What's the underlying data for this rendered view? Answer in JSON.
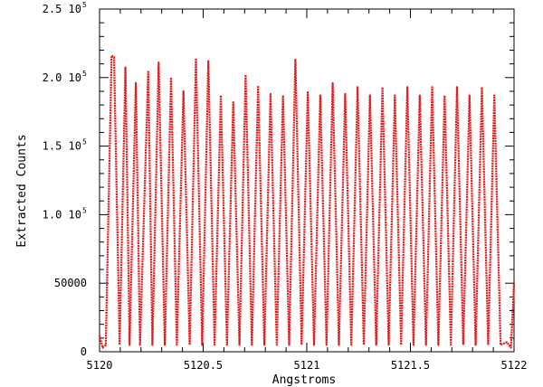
{
  "chart_data": {
    "type": "line",
    "xlabel": "Angstroms",
    "ylabel": "Extracted Counts",
    "xlim": [
      5120,
      5122
    ],
    "ylim": [
      0,
      250000
    ],
    "grid": false,
    "x_ticks": [
      {
        "value": 5120,
        "label": "5120"
      },
      {
        "value": 5120.5,
        "label": "5120.5"
      },
      {
        "value": 5121,
        "label": "5121"
      },
      {
        "value": 5121.5,
        "label": "5121.5"
      },
      {
        "value": 5122,
        "label": "5122"
      }
    ],
    "y_ticks": [
      {
        "value": 0,
        "label": "0",
        "exp": ""
      },
      {
        "value": 50000,
        "label": "50000",
        "exp": ""
      },
      {
        "value": 100000,
        "label": "1.0  10",
        "exp": "5"
      },
      {
        "value": 150000,
        "label": "1.5  10",
        "exp": "5"
      },
      {
        "value": 200000,
        "label": "2.0  10",
        "exp": "5"
      },
      {
        "value": 250000,
        "label": "2.5  10",
        "exp": "5"
      }
    ],
    "series_color": "#e31a1c",
    "series": [
      {
        "x": [
          5120.0,
          5120.015,
          5120.03,
          5120.058,
          5120.07,
          5120.097,
          5120.125,
          5120.145,
          5120.175,
          5120.195,
          5120.235,
          5120.255,
          5120.285,
          5120.315,
          5120.345,
          5120.373,
          5120.405,
          5120.435,
          5120.465,
          5120.495,
          5120.525,
          5120.555,
          5120.585,
          5120.615,
          5120.645,
          5120.675,
          5120.705,
          5120.735,
          5120.765,
          5120.795,
          5120.825,
          5120.855,
          5120.885,
          5120.915,
          5120.945,
          5120.975,
          5121.005,
          5121.035,
          5121.065,
          5121.095,
          5121.125,
          5121.155,
          5121.185,
          5121.215,
          5121.245,
          5121.275,
          5121.305,
          5121.335,
          5121.365,
          5121.395,
          5121.425,
          5121.455,
          5121.485,
          5121.515,
          5121.545,
          5121.575,
          5121.605,
          5121.635,
          5121.665,
          5121.695,
          5121.725,
          5121.755,
          5121.785,
          5121.815,
          5121.845,
          5121.875,
          5121.905,
          5121.935,
          5121.965,
          5121.985,
          5122.0
        ],
        "y": [
          12000,
          3000,
          5000,
          216000,
          215000,
          5000,
          208000,
          5000,
          196000,
          5000,
          205000,
          5000,
          211000,
          5000,
          200000,
          5000,
          190000,
          5000,
          214000,
          5000,
          212000,
          5000,
          187000,
          5000,
          182000,
          5000,
          202000,
          5000,
          194000,
          5000,
          188000,
          5000,
          187000,
          5000,
          213000,
          5000,
          190000,
          5000,
          187000,
          5000,
          196000,
          5000,
          188000,
          5000,
          193000,
          5000,
          187000,
          5000,
          193000,
          5000,
          187000,
          5000,
          193000,
          5000,
          187000,
          5000,
          193000,
          5000,
          187000,
          5000,
          193000,
          5000,
          187000,
          5000,
          193000,
          5000,
          187000,
          5000,
          7000,
          3000,
          50000
        ]
      }
    ]
  }
}
